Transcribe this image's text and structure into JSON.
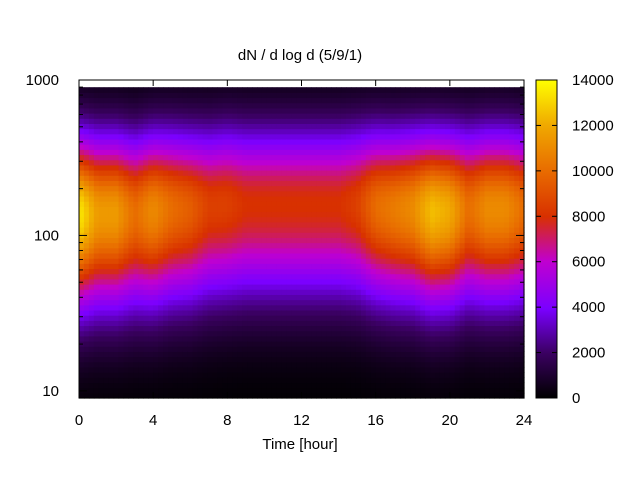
{
  "chart_data": {
    "type": "heatmap",
    "title": "dN / d log d (5/9/1)",
    "xlabel": "Time [hour]",
    "ylabel": "",
    "xlim": [
      0,
      24
    ],
    "ylim": [
      9,
      1000
    ],
    "y_scale": "log",
    "x_ticks": [
      0,
      4,
      8,
      12,
      16,
      20,
      24
    ],
    "x_tick_labels": [
      "0",
      "4",
      "8",
      "12",
      "16",
      "20",
      "24"
    ],
    "y_ticks": [
      10,
      100,
      1000
    ],
    "y_tick_labels": [
      "10",
      "100",
      "1000"
    ],
    "colorbar": {
      "min": 0,
      "max": 14000,
      "ticks": [
        0,
        2000,
        4000,
        6000,
        8000,
        10000,
        12000,
        14000
      ],
      "tick_labels": [
        "0",
        "2000",
        "4000",
        "6000",
        "8000",
        "10000",
        "12000",
        "14000"
      ]
    },
    "time_hours": [
      0,
      1,
      2,
      3,
      4,
      5,
      6,
      7,
      8,
      9,
      10,
      11,
      12,
      13,
      14,
      15,
      16,
      17,
      18,
      19,
      20,
      21,
      22,
      23,
      24
    ],
    "peak_diameter": [
      140,
      140,
      140,
      140,
      145,
      150,
      150,
      155,
      160,
      160,
      160,
      160,
      160,
      160,
      160,
      160,
      155,
      150,
      150,
      145,
      145,
      150,
      150,
      150,
      150
    ],
    "peak_value": [
      13500,
      11500,
      11500,
      10000,
      11000,
      10000,
      9500,
      8500,
      8500,
      8000,
      8000,
      8000,
      8000,
      8000,
      8000,
      8500,
      10000,
      10500,
      11000,
      12500,
      12000,
      10000,
      11000,
      11000,
      10000
    ],
    "min_diameter": 9,
    "max_diameter": 900
  }
}
